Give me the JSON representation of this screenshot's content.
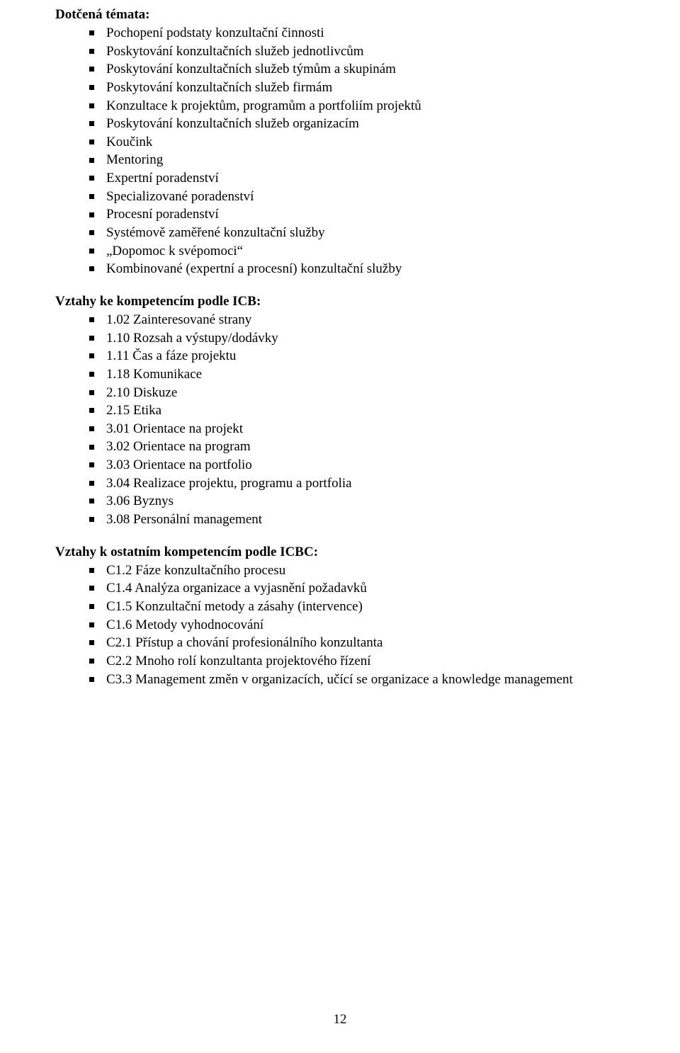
{
  "page": {
    "number": "12",
    "background_color": "#ffffff",
    "text_color": "#000000",
    "font_family": "Times New Roman",
    "body_fontsize_pt": 14,
    "heading_fontsize_pt": 14,
    "heading_fontweight": "bold",
    "bullet_marker": "square",
    "bullet_color": "#000000"
  },
  "sections": {
    "dotcena_temata": {
      "heading": "Dotčená témata:",
      "items": [
        "Pochopení podstaty konzultační činnosti",
        "Poskytování konzultačních služeb jednotlivcům",
        "Poskytování konzultačních služeb týmům a skupinám",
        "Poskytování konzultačních služeb firmám",
        "Konzultace k projektům, programům a portfoliím projektů",
        "Poskytování konzultačních služeb organizacím",
        "Koučink",
        "Mentoring",
        "Expertní poradenství",
        "Specializované poradenství",
        "Procesní poradenství",
        "Systémově zaměřené konzultační služby",
        "„Dopomoc k svépomoci“",
        "Kombinované (expertní a procesní) konzultační služby"
      ]
    },
    "vztahy_icb": {
      "heading": "Vztahy ke kompetencím podle ICB:",
      "items": [
        "1.02 Zainteresované strany",
        "1.10 Rozsah a výstupy/dodávky",
        "1.11 Čas a fáze projektu",
        "1.18 Komunikace",
        "2.10 Diskuze",
        "2.15 Etika",
        "3.01 Orientace na projekt",
        "3.02 Orientace na program",
        "3.03 Orientace na portfolio",
        "3.04 Realizace projektu, programu a portfolia",
        "3.06 Byznys",
        "3.08 Personální management"
      ]
    },
    "vztahy_icbc": {
      "heading": "Vztahy k ostatním kompetencím podle ICBC:",
      "items": [
        "C1.2 Fáze konzultačního procesu",
        "C1.4 Analýza organizace a vyjasnění požadavků",
        "C1.5 Konzultační metody a zásahy (intervence)",
        "C1.6 Metody vyhodnocování",
        "C2.1 Přístup a chování profesionálního konzultanta",
        "C2.2 Mnoho rolí konzultanta projektového řízení",
        "C3.3 Management změn v organizacích, učící se organizace a knowledge management"
      ]
    }
  }
}
